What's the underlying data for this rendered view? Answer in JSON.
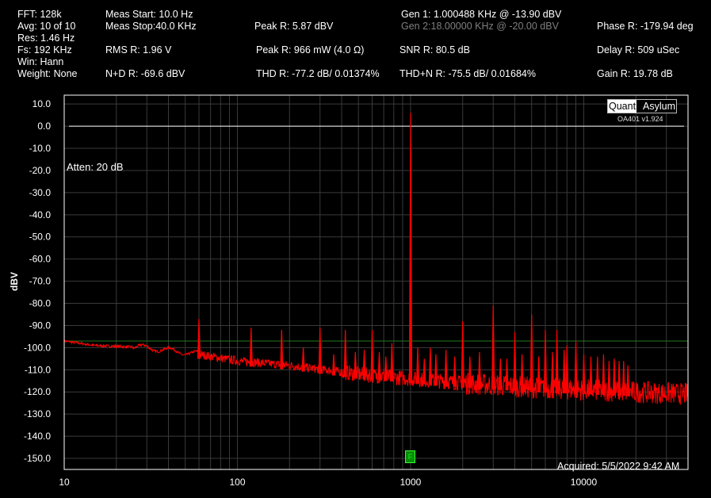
{
  "header": {
    "fft": "FFT:  128k",
    "avg": "Avg: 10 of 10",
    "res": "Res: 1.46 Hz",
    "fs": "Fs:  192 KHz",
    "win": "Win: Hann",
    "weight": "Weight: None",
    "meas_start": "Meas Start: 10.0 Hz",
    "meas_stop": "Meas Stop:40.0 KHz",
    "rms": "RMS R:  1.96 V",
    "nd": "N+D R:  -69.6 dBV",
    "peak_dbv": "Peak R: 5.87 dBV",
    "peak_mw": "Peak R: 966 mW (4.0 Ω)",
    "thd": "THD R:  -77.2 dB/ 0.01374%",
    "gen1": "Gen 1: 1.000488 KHz @ -13.90  dBV",
    "gen2": "Gen 2:18.00000 KHz @ -20.00  dBV",
    "snr": "SNR R:  80.5 dB",
    "thdn": "THD+N R:  -75.5 dB/ 0.01684%",
    "phase": "Phase R:  -179.94 deg",
    "delay": "Delay R:  509 uSec",
    "gain": "Gain R:  19.78 dB"
  },
  "logo": {
    "part1": "Quant",
    "part2": "Asylum",
    "version": "OA401 v1.924"
  },
  "annotations": {
    "atten": "Atten: 20 dB",
    "acquired": "Acquired: 5/5/2022  9:42 AM",
    "marker": "F"
  },
  "colors": {
    "trace": "#ff0000",
    "grid": "#3a3a3a",
    "reference": "#ffffff",
    "threshold": "#1f7a1f",
    "frame": "#ffffff"
  },
  "chart_data": {
    "type": "line",
    "xscale": "log",
    "xlim": [
      10,
      40000
    ],
    "ylim": [
      -155,
      14
    ],
    "ylabel": "dBV",
    "xticks": [
      10,
      100,
      1000,
      10000
    ],
    "xtick_labels": [
      "10",
      "100",
      "1000",
      "10000"
    ],
    "yticks": [
      10,
      0,
      -10,
      -20,
      -30,
      -40,
      -50,
      -60,
      -70,
      -80,
      -90,
      -100,
      -110,
      -120,
      -130,
      -140,
      -150
    ],
    "ytick_labels": [
      "10.0",
      "0.0",
      "-10.0",
      "-20.0",
      "-30.0",
      "-40.0",
      "-50.0",
      "-60.0",
      "-70.0",
      "-80.0",
      "-90.0",
      "-100.0",
      "-110.0",
      "-120.0",
      "-130.0",
      "-140.0",
      "-150.0"
    ],
    "grid": true,
    "reference_line_dbv": 0,
    "threshold_line_dbv": -97,
    "noise_floor": {
      "x": [
        10,
        15,
        30,
        60,
        100,
        200,
        500,
        1000,
        2000,
        5000,
        10000,
        20000,
        40000
      ],
      "y": [
        -97,
        -99,
        -100,
        -103,
        -106,
        -108,
        -112,
        -114,
        -116,
        -118,
        -119,
        -120,
        -121
      ]
    },
    "peaks": [
      {
        "x": 60,
        "y": -87
      },
      {
        "x": 120,
        "y": -91
      },
      {
        "x": 180,
        "y": -92
      },
      {
        "x": 240,
        "y": -100
      },
      {
        "x": 300,
        "y": -91
      },
      {
        "x": 360,
        "y": -103
      },
      {
        "x": 420,
        "y": -92
      },
      {
        "x": 480,
        "y": -102
      },
      {
        "x": 540,
        "y": -101
      },
      {
        "x": 600,
        "y": -92
      },
      {
        "x": 660,
        "y": -102
      },
      {
        "x": 720,
        "y": -104
      },
      {
        "x": 780,
        "y": -98
      },
      {
        "x": 1000,
        "y": 6
      },
      {
        "x": 1100,
        "y": -100
      },
      {
        "x": 1200,
        "y": -105
      },
      {
        "x": 1300,
        "y": -100
      },
      {
        "x": 1400,
        "y": -103
      },
      {
        "x": 1600,
        "y": -101
      },
      {
        "x": 1800,
        "y": -104
      },
      {
        "x": 2000,
        "y": -88
      },
      {
        "x": 2200,
        "y": -104
      },
      {
        "x": 2500,
        "y": -102
      },
      {
        "x": 3000,
        "y": -81
      },
      {
        "x": 3300,
        "y": -105
      },
      {
        "x": 3600,
        "y": -105
      },
      {
        "x": 4000,
        "y": -93
      },
      {
        "x": 4400,
        "y": -103
      },
      {
        "x": 5000,
        "y": -85
      },
      {
        "x": 5500,
        "y": -104
      },
      {
        "x": 6000,
        "y": -92
      },
      {
        "x": 6600,
        "y": -102
      },
      {
        "x": 7000,
        "y": -92
      },
      {
        "x": 7700,
        "y": -101
      },
      {
        "x": 8000,
        "y": -99
      },
      {
        "x": 9000,
        "y": -97
      },
      {
        "x": 10000,
        "y": -103
      },
      {
        "x": 11000,
        "y": -104
      },
      {
        "x": 12000,
        "y": -104
      },
      {
        "x": 13000,
        "y": -103
      },
      {
        "x": 14000,
        "y": -106
      },
      {
        "x": 15000,
        "y": -105
      },
      {
        "x": 16000,
        "y": -106
      },
      {
        "x": 17000,
        "y": -106
      },
      {
        "x": 18000,
        "y": -108
      }
    ]
  }
}
